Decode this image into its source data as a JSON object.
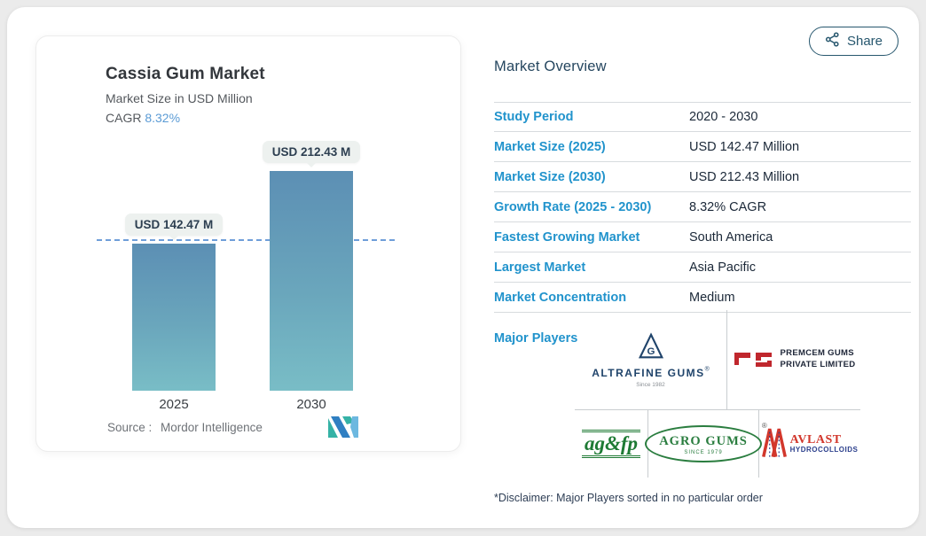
{
  "share": {
    "label": "Share",
    "icon": "share-nodes-icon"
  },
  "chart": {
    "title": "Cassia Gum Market",
    "subtitle": "Market Size in USD Million",
    "cagr_label": "CAGR",
    "cagr_value": "8.32%",
    "bar_labels": [
      "USD 142.47 M",
      "USD 212.43 M"
    ],
    "years": [
      "2025",
      "2030"
    ],
    "source_label": "Source :",
    "source_name": "Mordor Intelligence"
  },
  "chart_data": {
    "type": "bar",
    "title": "Cassia Gum Market",
    "subtitle": "Market Size in USD Million",
    "cagr": "8.32%",
    "unit": "USD Million",
    "categories": [
      "2025",
      "2030"
    ],
    "values": [
      142.47,
      212.43
    ],
    "data_labels": [
      "USD 142.47 M",
      "USD 212.43 M"
    ],
    "reference_line": {
      "y": 142.47,
      "style": "dashed",
      "color": "#6f9ed9"
    },
    "ylim": [
      0,
      230
    ],
    "grid": false,
    "legend": false,
    "bar_gradient": [
      "#5c8fb4",
      "#79bdc6"
    ]
  },
  "overview": {
    "title": "Market Overview",
    "rows": [
      {
        "label": "Study Period",
        "value": "2020 - 2030"
      },
      {
        "label": "Market Size (2025)",
        "value": "USD 142.47 Million"
      },
      {
        "label": "Market Size (2030)",
        "value": "USD 212.43 Million"
      },
      {
        "label": "Growth Rate (2025 - 2030)",
        "value": "8.32% CAGR"
      },
      {
        "label": "Fastest Growing Market",
        "value": "South America"
      },
      {
        "label": "Largest Market",
        "value": "Asia Pacific"
      },
      {
        "label": "Market Concentration",
        "value": "Medium"
      }
    ],
    "major_players_label": "Major Players",
    "disclaimer": "*Disclaimer: Major Players sorted in no particular order"
  },
  "players": {
    "altrafine": {
      "name": "ALTRAFINE GUMS",
      "reg": "®",
      "tagline": "Since 1982",
      "monogram": "G"
    },
    "premcem": {
      "line1": "PREMCEM GUMS",
      "line2": "PRIVATE LIMITED"
    },
    "agfp": {
      "name": "ag&fp"
    },
    "agro": {
      "name": "AGRO GUMS",
      "tagline": "SINCE 1979",
      "reg": "®"
    },
    "avlast": {
      "line1": "AVLAST",
      "line2": "HYDROCOLLOIDS"
    }
  },
  "colors": {
    "accent_blue": "#2193cc",
    "navy": "#25465f",
    "cagr_blue": "#5b9bd5",
    "dashed_line": "#6f9ed9",
    "bar_top": "#5c8fb4",
    "bar_bottom": "#79bdc6",
    "page_bg": "#ebebeb"
  }
}
